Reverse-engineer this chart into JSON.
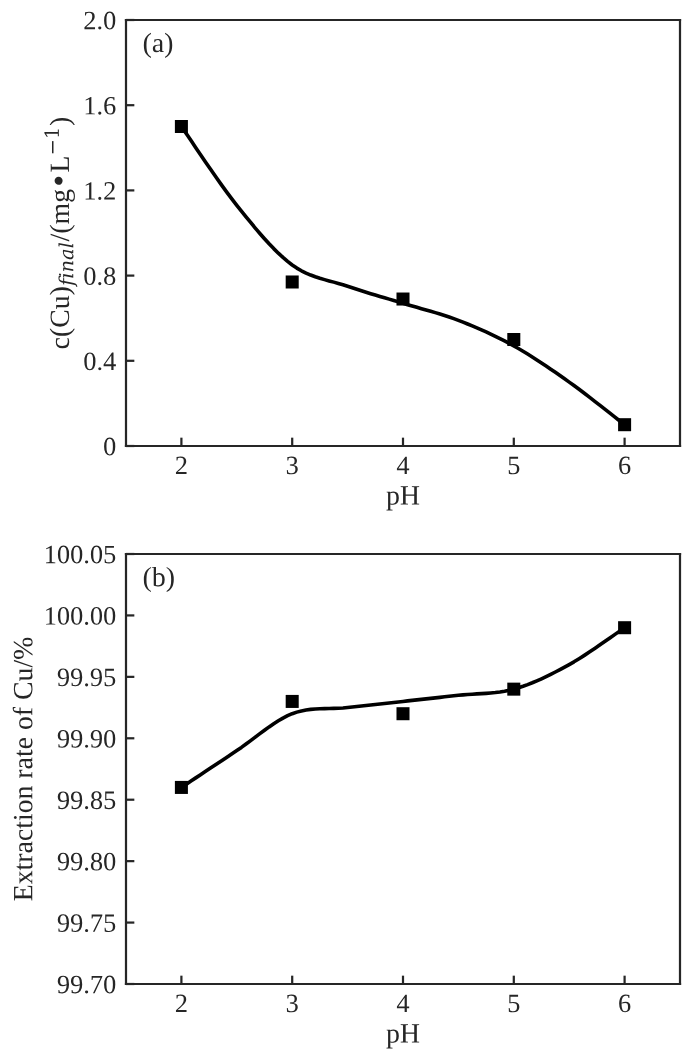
{
  "chart_data": [
    {
      "type": "scatter",
      "annotations": [
        "(a)"
      ],
      "xlabel": "pH",
      "ylabel": "c(Cu)$_{final}$/(mg•L$^{−1}$)",
      "xlim": [
        1.5,
        6.5
      ],
      "xticks": [
        2,
        3,
        4,
        5,
        6
      ],
      "ylim": [
        0,
        2.0
      ],
      "yticks": [
        0,
        0.4,
        0.8,
        1.2,
        1.6,
        {
          "value": 2.0,
          "label": "2.0"
        }
      ],
      "grid": false,
      "legend": false,
      "series": [
        {
          "marker": "square",
          "color": "#000000",
          "x": [
            2,
            3,
            4,
            5,
            6
          ],
          "values": [
            1.5,
            0.77,
            0.69,
            0.5,
            0.1
          ]
        },
        {
          "type": "line",
          "marker": "none",
          "line_style": "solid",
          "color": "#000000",
          "x": [
            2,
            2.5,
            3,
            3.5,
            4,
            4.5,
            5,
            5.5,
            6
          ],
          "values": [
            1.5,
            1.13,
            0.85,
            0.75,
            0.67,
            0.59,
            0.47,
            0.3,
            0.1
          ]
        }
      ]
    },
    {
      "type": "scatter",
      "annotations": [
        "(b)"
      ],
      "xlabel": "pH",
      "ylabel": "Extraction rate of Cu/%",
      "xlim": [
        1.5,
        6.5
      ],
      "xticks": [
        2,
        3,
        4,
        5,
        6
      ],
      "ylim": [
        99.7,
        100.05
      ],
      "yticks": [
        {
          "value": 99.7,
          "label": "99.70"
        },
        {
          "value": 99.75,
          "label": "99.75"
        },
        {
          "value": 99.8,
          "label": "99.80"
        },
        {
          "value": 99.85,
          "label": "99.85"
        },
        {
          "value": 99.9,
          "label": "99.90"
        },
        {
          "value": 99.95,
          "label": "99.95"
        },
        {
          "value": 100.0,
          "label": "100.00"
        },
        {
          "value": 100.05,
          "label": "100.05"
        }
      ],
      "grid": false,
      "legend": false,
      "series": [
        {
          "marker": "square",
          "color": "#000000",
          "x": [
            2,
            3,
            4,
            5,
            6
          ],
          "values": [
            99.86,
            99.93,
            99.92,
            99.94,
            99.99
          ]
        },
        {
          "type": "line",
          "marker": "none",
          "line_style": "solid",
          "color": "#000000",
          "x": [
            2,
            2.5,
            3,
            3.5,
            4,
            4.5,
            5,
            5.5,
            6
          ],
          "values": [
            99.86,
            99.89,
            99.92,
            99.925,
            99.93,
            99.935,
            99.94,
            99.96,
            99.99
          ]
        }
      ]
    }
  ]
}
